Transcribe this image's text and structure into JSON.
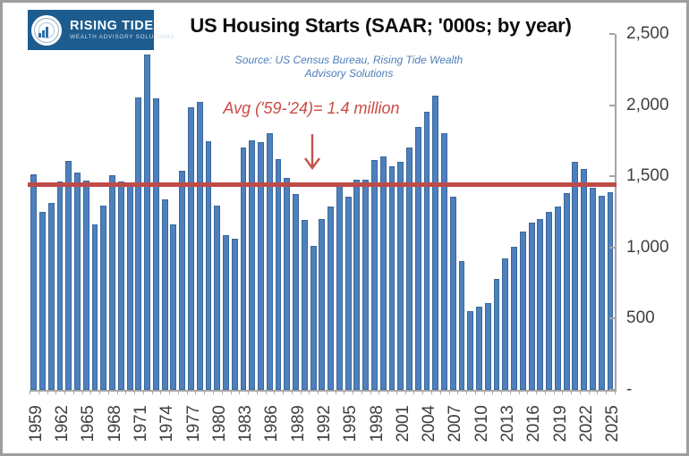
{
  "logo": {
    "name": "RISING TIDE",
    "tagline": "WEALTH ADVISORY SOLUTIONS",
    "bg_color": "#1d5c8e"
  },
  "header": {
    "title": "US Housing Starts (SAAR; '000s; by year)",
    "source_line1": "Source: US Census Bureau, Rising Tide Wealth",
    "source_line2": "Advisory Solutions",
    "source_color": "#4d7dba"
  },
  "annotation": {
    "text": "Avg ('59-'24)= 1.4 million",
    "color": "#cb4a44",
    "arrow": "down-arrow"
  },
  "chart_data": {
    "type": "bar",
    "title": "US Housing Starts (SAAR; '000s; by year)",
    "xlabel": "",
    "ylabel": "",
    "ylim": [
      0,
      2500
    ],
    "grid": false,
    "legend": "none",
    "bar_color": "#4e80bd",
    "bar_border_color": "#3a689b",
    "avg_line": {
      "value": 1440,
      "label": "Avg ('59-'24)= 1.4 million",
      "color": "#be4b48"
    },
    "y_ticks": [
      {
        "value": 2500,
        "label": "2,500"
      },
      {
        "value": 2000,
        "label": "2,000"
      },
      {
        "value": 1500,
        "label": "1,500"
      },
      {
        "value": 1000,
        "label": "1,000"
      },
      {
        "value": 500,
        "label": "500"
      },
      {
        "value": 0,
        "label": "-"
      }
    ],
    "x_label_interval": 3,
    "categories": [
      1959,
      1960,
      1961,
      1962,
      1963,
      1964,
      1965,
      1966,
      1967,
      1968,
      1969,
      1970,
      1971,
      1972,
      1973,
      1974,
      1975,
      1976,
      1977,
      1978,
      1979,
      1980,
      1981,
      1982,
      1983,
      1984,
      1985,
      1986,
      1987,
      1988,
      1989,
      1990,
      1991,
      1992,
      1993,
      1994,
      1995,
      1996,
      1997,
      1998,
      1999,
      2000,
      2001,
      2002,
      2003,
      2004,
      2005,
      2006,
      2007,
      2008,
      2009,
      2010,
      2011,
      2012,
      2013,
      2014,
      2015,
      2016,
      2017,
      2018,
      2019,
      2020,
      2021,
      2022,
      2023,
      2024,
      2025
    ],
    "values": [
      1517,
      1252,
      1313,
      1463,
      1610,
      1529,
      1473,
      1165,
      1292,
      1508,
      1467,
      1434,
      2052,
      2357,
      2045,
      1338,
      1160,
      1538,
      1987,
      2020,
      1745,
      1292,
      1084,
      1062,
      1703,
      1750,
      1742,
      1805,
      1620,
      1488,
      1376,
      1193,
      1014,
      1200,
      1288,
      1457,
      1354,
      1477,
      1474,
      1617,
      1641,
      1569,
      1603,
      1705,
      1848,
      1956,
      2068,
      1801,
      1355,
      906,
      554,
      587,
      609,
      781,
      925,
      1003,
      1112,
      1174,
      1203,
      1250,
      1290,
      1380,
      1601,
      1553,
      1420,
      1366,
      1390
    ]
  }
}
